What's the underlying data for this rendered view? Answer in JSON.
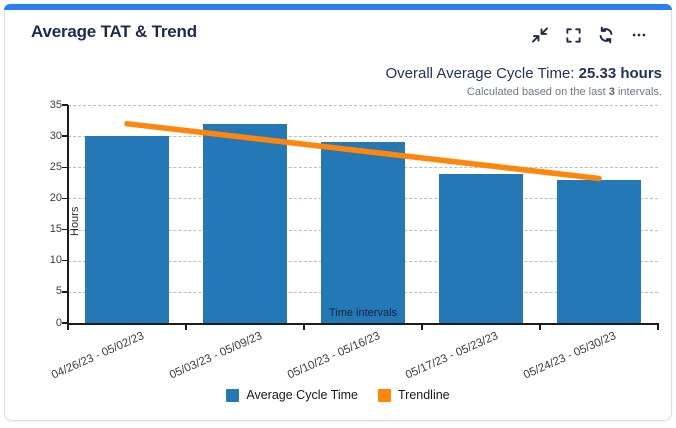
{
  "header": {
    "title": "Average TAT & Trend"
  },
  "toolbar": {
    "collapse_icon": "collapse-icon",
    "fullscreen_icon": "fullscreen-icon",
    "refresh_icon": "refresh-icon",
    "more_icon": "more-options-icon"
  },
  "summary": {
    "label": "Overall Average Cycle Time: ",
    "value": "25.33 hours",
    "note_prefix": "Calculated based on the last ",
    "note_bold": "3",
    "note_suffix": " intervals."
  },
  "colors": {
    "accent_bar": "#2b7df0",
    "title_navy": "#1e294e",
    "bar_blue": "#2378b5",
    "trend_orange": "#fe860d",
    "grid_gray": "#bdbdbd",
    "note_gray": "#6f7887"
  },
  "chart_data": {
    "type": "bar",
    "title": "Average TAT & Trend",
    "categories": [
      "04/26/23 - 05/02/23",
      "05/03/23 - 05/09/23",
      "05/10/23 - 05/16/23",
      "05/17/23 - 05/23/23",
      "05/24/23 - 05/30/23"
    ],
    "series": [
      {
        "name": "Average Cycle Time",
        "type": "bar",
        "color": "#2378b5",
        "values": [
          30,
          32,
          29,
          24,
          23
        ]
      },
      {
        "name": "Trendline",
        "type": "line",
        "color": "#fe860d",
        "values": [
          32,
          29.8,
          27.6,
          25.4,
          23.2
        ]
      }
    ],
    "xlabel": "Time intervals",
    "ylabel": "Hours",
    "ylim": [
      0,
      35
    ],
    "ytick_step": 5,
    "yticks": [
      0,
      5,
      10,
      15,
      20,
      25,
      30,
      35
    ],
    "grid": "horizontal-dashed",
    "legend_position": "bottom"
  }
}
